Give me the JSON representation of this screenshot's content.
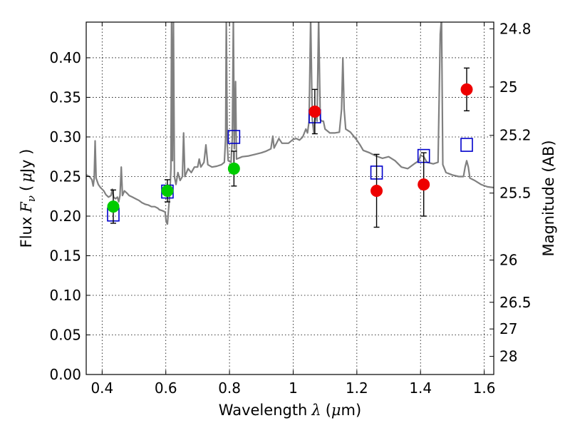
{
  "chart_data": {
    "type": "scatter",
    "title": "",
    "xlabel": "Wavelength",
    "xlabel_symbol": "λ",
    "xlabel_unit_open": "(",
    "xlabel_unit_mu": "μ",
    "xlabel_unit_rest": "m)",
    "ylabel": "Flux",
    "ylabel_symbol": "F",
    "ylabel_subscript": "ν",
    "ylabel_unit_open": "(",
    "ylabel_unit_mu": "μ",
    "ylabel_unit_rest": "Jy )",
    "y2label": "Magnitude (AB)",
    "xlim": [
      0.35,
      1.63
    ],
    "ylim": [
      0.0,
      0.445
    ],
    "grid": true,
    "grid_style": "dotted",
    "x_ticks": [
      0.4,
      0.6,
      0.8,
      1.0,
      1.2,
      1.4,
      1.6
    ],
    "x_tick_labels": [
      "0.4",
      "0.6",
      "0.8",
      "1",
      "1.2",
      "1.4",
      "1.6"
    ],
    "y_ticks": [
      0.0,
      0.05,
      0.1,
      0.15,
      0.2,
      0.25,
      0.3,
      0.35,
      0.4
    ],
    "y_tick_labels": [
      "0.00",
      "0.05",
      "0.10",
      "0.15",
      "0.20",
      "0.25",
      "0.30",
      "0.35",
      "0.40"
    ],
    "y2_ticks": [
      {
        "label": "24.8",
        "flux": 0.4365
      },
      {
        "label": "25",
        "flux": 0.3631
      },
      {
        "label": "25.2",
        "flux": 0.302
      },
      {
        "label": "25.5",
        "flux": 0.2291
      },
      {
        "label": "26",
        "flux": 0.1445
      },
      {
        "label": "26.5",
        "flux": 0.0912
      },
      {
        "label": "27",
        "flux": 0.0575
      },
      {
        "label": "28",
        "flux": 0.0229
      }
    ],
    "series": [
      {
        "marker": "line",
        "color": "#808080",
        "points": [
          [
            0.35,
            0.252
          ],
          [
            0.36,
            0.25
          ],
          [
            0.368,
            0.246
          ],
          [
            0.372,
            0.238
          ],
          [
            0.375,
            0.248
          ],
          [
            0.378,
            0.295
          ],
          [
            0.381,
            0.248
          ],
          [
            0.388,
            0.24
          ],
          [
            0.395,
            0.236
          ],
          [
            0.405,
            0.232
          ],
          [
            0.412,
            0.227
          ],
          [
            0.42,
            0.224
          ],
          [
            0.428,
            0.226
          ],
          [
            0.432,
            0.234
          ],
          [
            0.436,
            0.224
          ],
          [
            0.442,
            0.222
          ],
          [
            0.448,
            0.224
          ],
          [
            0.452,
            0.218
          ],
          [
            0.456,
            0.226
          ],
          [
            0.46,
            0.262
          ],
          [
            0.464,
            0.226
          ],
          [
            0.47,
            0.232
          ],
          [
            0.478,
            0.229
          ],
          [
            0.485,
            0.226
          ],
          [
            0.495,
            0.224
          ],
          [
            0.505,
            0.222
          ],
          [
            0.515,
            0.22
          ],
          [
            0.525,
            0.217
          ],
          [
            0.535,
            0.215
          ],
          [
            0.545,
            0.214
          ],
          [
            0.555,
            0.212
          ],
          [
            0.565,
            0.212
          ],
          [
            0.575,
            0.21
          ],
          [
            0.58,
            0.208
          ],
          [
            0.588,
            0.207
          ],
          [
            0.594,
            0.206
          ],
          [
            0.598,
            0.205
          ],
          [
            0.601,
            0.193
          ],
          [
            0.605,
            0.19
          ],
          [
            0.609,
            0.21
          ],
          [
            0.613,
            0.23
          ],
          [
            0.616,
            0.26
          ],
          [
            0.618,
            0.45
          ],
          [
            0.621,
            0.27
          ],
          [
            0.624,
            0.45
          ],
          [
            0.627,
            0.25
          ],
          [
            0.632,
            0.24
          ],
          [
            0.638,
            0.255
          ],
          [
            0.645,
            0.245
          ],
          [
            0.652,
            0.25
          ],
          [
            0.656,
            0.305
          ],
          [
            0.66,
            0.25
          ],
          [
            0.67,
            0.26
          ],
          [
            0.68,
            0.255
          ],
          [
            0.69,
            0.262
          ],
          [
            0.7,
            0.262
          ],
          [
            0.705,
            0.272
          ],
          [
            0.71,
            0.262
          ],
          [
            0.72,
            0.268
          ],
          [
            0.726,
            0.29
          ],
          [
            0.732,
            0.265
          ],
          [
            0.745,
            0.262
          ],
          [
            0.76,
            0.263
          ],
          [
            0.775,
            0.265
          ],
          [
            0.784,
            0.268
          ],
          [
            0.788,
            0.3
          ],
          [
            0.79,
            0.45
          ],
          [
            0.793,
            0.29
          ],
          [
            0.796,
            0.27
          ],
          [
            0.805,
            0.268
          ],
          [
            0.809,
            0.3
          ],
          [
            0.812,
            0.45
          ],
          [
            0.815,
            0.285
          ],
          [
            0.819,
            0.37
          ],
          [
            0.822,
            0.272
          ],
          [
            0.84,
            0.275
          ],
          [
            0.86,
            0.276
          ],
          [
            0.88,
            0.278
          ],
          [
            0.9,
            0.28
          ],
          [
            0.915,
            0.282
          ],
          [
            0.93,
            0.285
          ],
          [
            0.936,
            0.301
          ],
          [
            0.94,
            0.286
          ],
          [
            0.955,
            0.298
          ],
          [
            0.965,
            0.292
          ],
          [
            0.985,
            0.292
          ],
          [
            1.0,
            0.297
          ],
          [
            1.01,
            0.298
          ],
          [
            1.02,
            0.296
          ],
          [
            1.03,
            0.3
          ],
          [
            1.04,
            0.31
          ],
          [
            1.045,
            0.305
          ],
          [
            1.05,
            0.32
          ],
          [
            1.055,
            0.45
          ],
          [
            1.06,
            0.322
          ],
          [
            1.065,
            0.305
          ],
          [
            1.07,
            0.33
          ],
          [
            1.075,
            0.32
          ],
          [
            1.08,
            0.45
          ],
          [
            1.085,
            0.322
          ],
          [
            1.09,
            0.32
          ],
          [
            1.095,
            0.32
          ],
          [
            1.1,
            0.31
          ],
          [
            1.115,
            0.305
          ],
          [
            1.13,
            0.305
          ],
          [
            1.145,
            0.306
          ],
          [
            1.152,
            0.335
          ],
          [
            1.156,
            0.4
          ],
          [
            1.16,
            0.335
          ],
          [
            1.165,
            0.31
          ],
          [
            1.18,
            0.306
          ],
          [
            1.19,
            0.301
          ],
          [
            1.2,
            0.296
          ],
          [
            1.21,
            0.29
          ],
          [
            1.22,
            0.283
          ],
          [
            1.24,
            0.28
          ],
          [
            1.26,
            0.276
          ],
          [
            1.28,
            0.273
          ],
          [
            1.3,
            0.275
          ],
          [
            1.32,
            0.27
          ],
          [
            1.34,
            0.262
          ],
          [
            1.36,
            0.26
          ],
          [
            1.38,
            0.266
          ],
          [
            1.395,
            0.27
          ],
          [
            1.4,
            0.277
          ],
          [
            1.41,
            0.275
          ],
          [
            1.42,
            0.268
          ],
          [
            1.44,
            0.266
          ],
          [
            1.455,
            0.268
          ],
          [
            1.462,
            0.43
          ],
          [
            1.466,
            0.45
          ],
          [
            1.47,
            0.265
          ],
          [
            1.48,
            0.255
          ],
          [
            1.5,
            0.252
          ],
          [
            1.52,
            0.25
          ],
          [
            1.535,
            0.25
          ],
          [
            1.54,
            0.262
          ],
          [
            1.545,
            0.27
          ],
          [
            1.55,
            0.262
          ],
          [
            1.555,
            0.248
          ],
          [
            1.57,
            0.245
          ],
          [
            1.59,
            0.24
          ],
          [
            1.61,
            0.237
          ],
          [
            1.63,
            0.236
          ]
        ]
      },
      {
        "marker": "circle",
        "color": "#00cc00",
        "points": [
          {
            "x": 0.435,
            "y": 0.212,
            "err": 0.021
          },
          {
            "x": 0.605,
            "y": 0.232,
            "err": 0.014
          },
          {
            "x": 0.814,
            "y": 0.26,
            "err": 0.022
          }
        ]
      },
      {
        "marker": "circle",
        "color": "#ee0000",
        "points": [
          {
            "x": 1.068,
            "y": 0.332,
            "err": 0.028
          },
          {
            "x": 1.262,
            "y": 0.232,
            "err": 0.046
          },
          {
            "x": 1.41,
            "y": 0.24,
            "err": 0.04
          },
          {
            "x": 1.545,
            "y": 0.36,
            "err": 0.027
          }
        ]
      },
      {
        "marker": "square-open",
        "color": "#0000cc",
        "points": [
          {
            "x": 0.435,
            "y": 0.202
          },
          {
            "x": 0.605,
            "y": 0.231
          },
          {
            "x": 0.814,
            "y": 0.3
          },
          {
            "x": 1.068,
            "y": 0.326
          },
          {
            "x": 1.262,
            "y": 0.255
          },
          {
            "x": 1.41,
            "y": 0.276
          },
          {
            "x": 1.545,
            "y": 0.29
          }
        ]
      }
    ]
  }
}
